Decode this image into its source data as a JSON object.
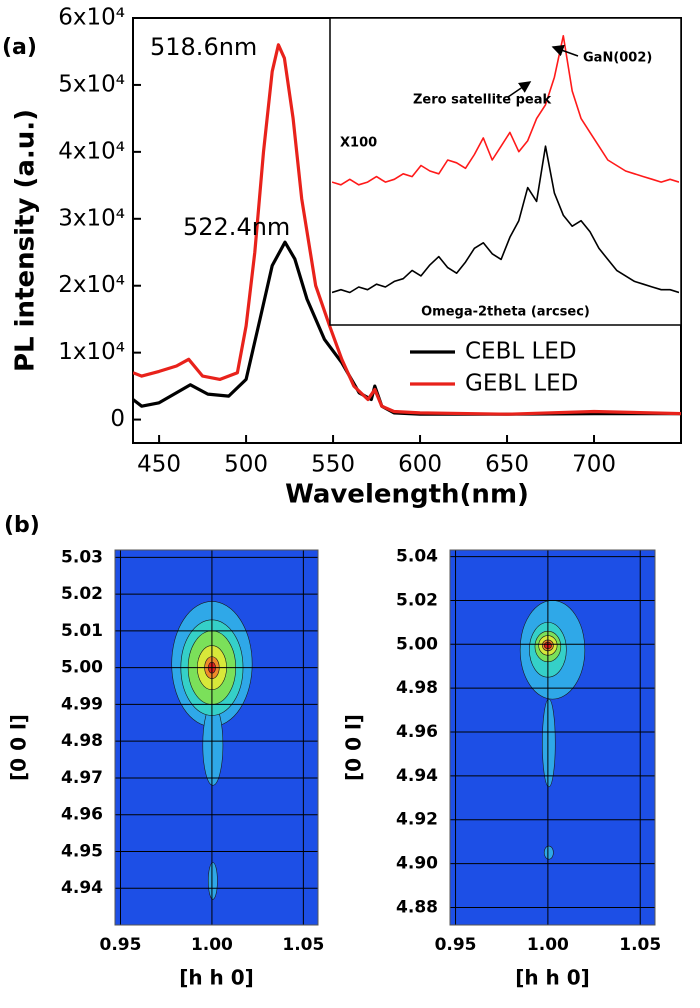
{
  "chart_data": [
    {
      "type": "line",
      "label": "(a)",
      "xlabel": "Wavelength(nm)",
      "ylabel": "PL intensity (a.u.)",
      "xlim": [
        435,
        750
      ],
      "ylim": [
        -3500,
        60000
      ],
      "xticks": [
        450,
        500,
        550,
        600,
        650,
        700
      ],
      "yticks": [
        0,
        {
          "value": 10000,
          "label": "1x10⁴"
        },
        {
          "value": 20000,
          "label": "2x10⁴"
        },
        {
          "value": 30000,
          "label": "3x10⁴"
        },
        {
          "value": 40000,
          "label": "4x10⁴"
        },
        {
          "value": 50000,
          "label": "5x10⁴"
        },
        {
          "value": 60000,
          "label": "6x10⁴"
        }
      ],
      "legend": "lower right",
      "annotations": [
        {
          "text": "518.6nm",
          "color": "#e8221b"
        },
        {
          "text": "522.4nm",
          "color": "#111111"
        }
      ],
      "series": [
        {
          "name": "CEBL LED",
          "color": "#000000",
          "x": [
            435,
            440,
            450,
            460,
            468,
            478,
            490,
            500,
            508,
            515,
            522.4,
            528,
            535,
            545,
            555,
            565,
            572,
            574,
            578,
            585,
            600,
            650,
            700,
            750
          ],
          "values": [
            3000,
            2000,
            2500,
            4000,
            5200,
            3800,
            3500,
            6000,
            15000,
            23000,
            26500,
            24000,
            18000,
            12000,
            8500,
            4000,
            3000,
            5000,
            2000,
            1000,
            800,
            800,
            900,
            900
          ]
        },
        {
          "name": "GEBL LED",
          "color": "#e8221b",
          "x": [
            435,
            440,
            450,
            460,
            467,
            475,
            485,
            495,
            500,
            505,
            510,
            515,
            518.6,
            522,
            527,
            532,
            540,
            548,
            555,
            562,
            570,
            574,
            578,
            585,
            600,
            650,
            700,
            750
          ],
          "values": [
            7000,
            6500,
            7200,
            8000,
            9000,
            6500,
            6000,
            7000,
            14000,
            25000,
            40000,
            52000,
            56000,
            54000,
            45000,
            33000,
            20000,
            14000,
            9000,
            5000,
            3000,
            4500,
            2000,
            1200,
            1000,
            800,
            1200,
            900
          ]
        }
      ]
    },
    {
      "type": "line",
      "xlabel": "Omega-2theta (arcsec)",
      "ylim": [
        0,
        100
      ],
      "annotations": [
        {
          "text": "X100",
          "color": "#000000"
        },
        {
          "text": "Zero satellite peak",
          "color": "#000000"
        },
        {
          "text": "GaN(002)",
          "color": "#000000"
        }
      ],
      "series": [
        {
          "color": "#ff1a1a",
          "values": [
            42,
            41,
            43,
            41,
            42,
            44,
            42,
            43,
            45,
            44,
            48,
            46,
            45,
            50,
            49,
            47,
            52,
            58,
            50,
            55,
            60,
            53,
            57,
            65,
            70,
            80,
            95,
            75,
            65,
            60,
            55,
            50,
            48,
            46,
            45,
            44,
            43,
            42,
            43,
            42
          ]
        },
        {
          "color": "#000000",
          "values": [
            2,
            3,
            2,
            4,
            3,
            5,
            4,
            6,
            7,
            10,
            8,
            12,
            15,
            11,
            9,
            13,
            18,
            20,
            16,
            14,
            22,
            28,
            40,
            35,
            55,
            38,
            30,
            26,
            28,
            24,
            18,
            14,
            10,
            8,
            6,
            5,
            4,
            3,
            3,
            2
          ]
        }
      ]
    },
    {
      "type": "contour",
      "label": "(b)",
      "xlabel": "[h h 0]",
      "ylabel": "[0 0 l]",
      "background": "#1d4fe6",
      "grid": true,
      "xlim": [
        0.947,
        1.058
      ],
      "ylim": [
        4.93,
        5.032
      ],
      "xticks": [
        0.95,
        {
          "value": 1,
          "label": "1.00"
        },
        1.05
      ],
      "yticks": [
        5.03,
        5.02,
        5.01,
        {
          "value": 5,
          "label": "5.00"
        },
        4.99,
        4.98,
        4.97,
        4.96,
        4.95,
        4.94
      ],
      "levels": [
        {
          "color": "#2fa8e8",
          "x": [
            0.978,
            1.022
          ],
          "y": [
            4.984,
            5.018
          ]
        },
        {
          "color": "#2fa8e8",
          "x": [
            0.995,
            1.006
          ],
          "y": [
            4.968,
            4.99
          ]
        },
        {
          "color": "#2fa8e8",
          "x": [
            0.998,
            1.003
          ],
          "y": [
            4.937,
            4.947
          ]
        },
        {
          "color": "#35d0c8",
          "x": [
            0.983,
            1.017
          ],
          "y": [
            4.987,
            5.013
          ]
        },
        {
          "color": "#7be05a",
          "x": [
            0.987,
            1.013
          ],
          "y": [
            4.99,
            5.01
          ]
        },
        {
          "color": "#d8e83a",
          "x": [
            0.992,
            1.008
          ],
          "y": [
            4.994,
            5.006
          ]
        },
        {
          "color": "#f08a2a",
          "x": [
            0.996,
            1.004
          ],
          "y": [
            4.997,
            5.003
          ]
        },
        {
          "color": "#e02020",
          "x": [
            0.998,
            1.002
          ],
          "y": [
            4.9985,
            5.0015
          ]
        }
      ]
    },
    {
      "type": "contour",
      "xlabel": "[h h 0]",
      "ylabel": "[0 0 l]",
      "background": "#1d4fe6",
      "grid": true,
      "xlim": [
        0.947,
        1.058
      ],
      "ylim": [
        4.872,
        5.043
      ],
      "xticks": [
        0.95,
        {
          "value": 1,
          "label": "1.00"
        },
        1.05
      ],
      "yticks": [
        5.04,
        5.02,
        {
          "value": 5,
          "label": "5.00"
        },
        4.98,
        4.96,
        4.94,
        4.92,
        {
          "value": 4.9,
          "label": "4.90"
        },
        4.88
      ],
      "levels": [
        {
          "color": "#2fa8e8",
          "x": [
            0.985,
            1.02
          ],
          "y": [
            4.975,
            5.02
          ]
        },
        {
          "color": "#2fa8e8",
          "x": [
            0.997,
            1.004
          ],
          "y": [
            4.935,
            4.975
          ]
        },
        {
          "color": "#2fa8e8",
          "x": [
            0.998,
            1.003
          ],
          "y": [
            4.902,
            4.908
          ]
        },
        {
          "color": "#35d0c8",
          "x": [
            0.99,
            1.01
          ],
          "y": [
            4.985,
            5.01
          ]
        },
        {
          "color": "#7be05a",
          "x": [
            0.993,
            1.007
          ],
          "y": [
            4.992,
            5.006
          ]
        },
        {
          "color": "#d8e83a",
          "x": [
            0.995,
            1.005
          ],
          "y": [
            4.995,
            5.004
          ]
        },
        {
          "color": "#f08a2a",
          "x": [
            0.997,
            1.003
          ],
          "y": [
            4.997,
            5.002
          ]
        },
        {
          "color": "#e02020",
          "x": [
            0.998,
            1.002
          ],
          "y": [
            4.998,
            5.001
          ]
        }
      ]
    }
  ]
}
